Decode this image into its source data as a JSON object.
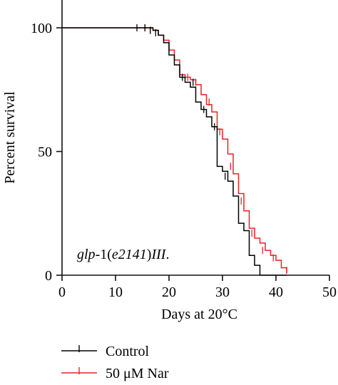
{
  "chart_data": {
    "type": "line",
    "step": true,
    "xlabel": "Days at 20°C",
    "ylabel": "Percent survival",
    "xlim": [
      0,
      50
    ],
    "ylim": [
      0,
      100
    ],
    "x_ticks": [
      0,
      10,
      20,
      30,
      40,
      50
    ],
    "x_tick_labels": [
      "0",
      "10",
      "20",
      "30",
      "40",
      "50"
    ],
    "y_ticks": [
      0,
      50,
      100
    ],
    "y_tick_labels": [
      "0",
      "50",
      "100"
    ],
    "grid": false,
    "legend_position": "bottom-left, below plot",
    "annotation": {
      "parts": [
        {
          "text": "glp",
          "italic": true
        },
        {
          "text": "-1(",
          "italic": false
        },
        {
          "text": "e2141",
          "italic": true
        },
        {
          "text": ")",
          "italic": false
        },
        {
          "text": "III",
          "italic": true
        },
        {
          "text": ".",
          "italic": false
        }
      ]
    },
    "series": [
      {
        "name": "Control",
        "color": "#000000",
        "steps": [
          [
            0,
            100
          ],
          [
            16,
            100
          ],
          [
            17,
            99
          ],
          [
            18,
            97
          ],
          [
            19,
            94
          ],
          [
            20,
            89
          ],
          [
            21,
            85
          ],
          [
            22,
            80
          ],
          [
            23,
            78
          ],
          [
            24,
            76
          ],
          [
            25,
            70
          ],
          [
            26,
            67
          ],
          [
            27,
            64
          ],
          [
            28,
            60
          ],
          [
            29,
            44
          ],
          [
            30,
            42
          ],
          [
            31,
            38
          ],
          [
            32,
            32
          ],
          [
            33,
            21
          ],
          [
            34,
            18
          ],
          [
            35,
            8
          ],
          [
            36,
            4
          ],
          [
            37,
            0
          ],
          [
            42,
            0
          ]
        ],
        "censor_marks": [
          [
            14,
            100
          ],
          [
            15.5,
            100
          ],
          [
            16.5,
            99
          ],
          [
            17.5,
            98
          ],
          [
            22.5,
            80
          ],
          [
            24.5,
            78
          ],
          [
            26.5,
            67
          ],
          [
            28.5,
            60
          ],
          [
            30.5,
            40
          ]
        ]
      },
      {
        "name": "50 μM Nar",
        "color": "#e8222a",
        "steps": [
          [
            0,
            100
          ],
          [
            16,
            100
          ],
          [
            17,
            99
          ],
          [
            18,
            97
          ],
          [
            19,
            95
          ],
          [
            20,
            91
          ],
          [
            21,
            87
          ],
          [
            22,
            81
          ],
          [
            23,
            80
          ],
          [
            24,
            79
          ],
          [
            25,
            77
          ],
          [
            26,
            73
          ],
          [
            27,
            69
          ],
          [
            28,
            66
          ],
          [
            29,
            59
          ],
          [
            30,
            55
          ],
          [
            31,
            49
          ],
          [
            32,
            41
          ],
          [
            33,
            33
          ],
          [
            34,
            26
          ],
          [
            35,
            19
          ],
          [
            36,
            15
          ],
          [
            37,
            13
          ],
          [
            38,
            10
          ],
          [
            39,
            8
          ],
          [
            40,
            6
          ],
          [
            41,
            3
          ],
          [
            42,
            1
          ]
        ],
        "censor_marks": [
          [
            15.5,
            100
          ],
          [
            16.5,
            99
          ],
          [
            23.5,
            80
          ],
          [
            25,
            78
          ],
          [
            27.5,
            70
          ],
          [
            29.5,
            58
          ],
          [
            31.5,
            44
          ],
          [
            33.5,
            30
          ],
          [
            35.5,
            17
          ],
          [
            37.5,
            10
          ],
          [
            39.5,
            7
          ],
          [
            42,
            2
          ]
        ]
      }
    ]
  }
}
